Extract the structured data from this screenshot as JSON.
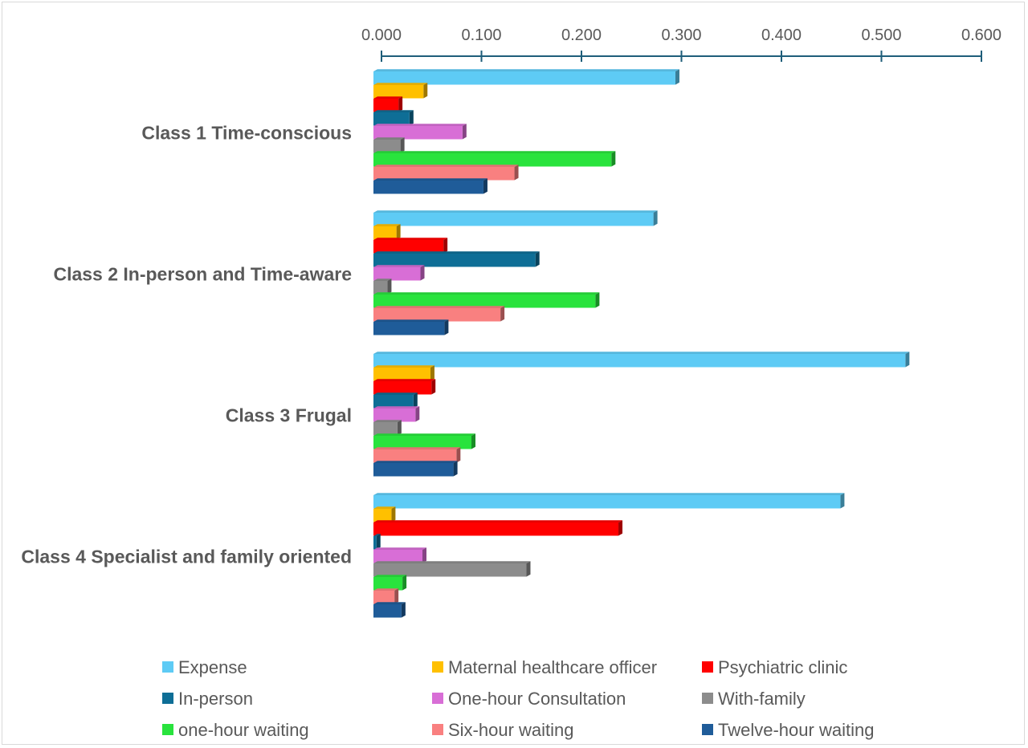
{
  "chart_data": {
    "type": "bar",
    "orientation": "horizontal",
    "title": "",
    "xlabel": "",
    "ylabel": "",
    "xlim": [
      0,
      0.6
    ],
    "tick_values": [
      0,
      0.1,
      0.2,
      0.3,
      0.4,
      0.5,
      0.6
    ],
    "tick_labels": [
      "0.000",
      "0.100",
      "0.200",
      "0.300",
      "0.400",
      "0.500",
      "0.600"
    ],
    "axis_position": "top",
    "grid": false,
    "legend_position": "bottom",
    "categories": [
      "Class 1 Time-conscious",
      "Class 2 In-person and Time-aware",
      "Class 3 Frugal",
      "Class 4 Specialist and family oriented"
    ],
    "series": [
      {
        "name": "Expense",
        "color": "#5ecbf5",
        "values": [
          0.302,
          0.28,
          0.532,
          0.467
        ]
      },
      {
        "name": "Maternal healthcare officer",
        "color": "#ffc000",
        "values": [
          0.05,
          0.023,
          0.057,
          0.018
        ]
      },
      {
        "name": "Psychiatric clinic",
        "color": "#ff0000",
        "values": [
          0.025,
          0.07,
          0.058,
          0.245
        ]
      },
      {
        "name": "In-person",
        "color": "#0e6e96",
        "values": [
          0.036,
          0.162,
          0.04,
          0.003
        ]
      },
      {
        "name": "One-hour Consultation",
        "color": "#d86ed6",
        "values": [
          0.089,
          0.047,
          0.042,
          0.049
        ]
      },
      {
        "name": "With-family",
        "color": "#8c8c8c",
        "values": [
          0.027,
          0.014,
          0.024,
          0.153
        ]
      },
      {
        "name": "one-hour waiting",
        "color": "#29e33d",
        "values": [
          0.238,
          0.222,
          0.098,
          0.029
        ]
      },
      {
        "name": "Six-hour waiting",
        "color": "#f98080",
        "values": [
          0.141,
          0.127,
          0.083,
          0.021
        ]
      },
      {
        "name": "Twelve-hour waiting",
        "color": "#1f5c99",
        "values": [
          0.11,
          0.071,
          0.08,
          0.028
        ]
      }
    ]
  }
}
